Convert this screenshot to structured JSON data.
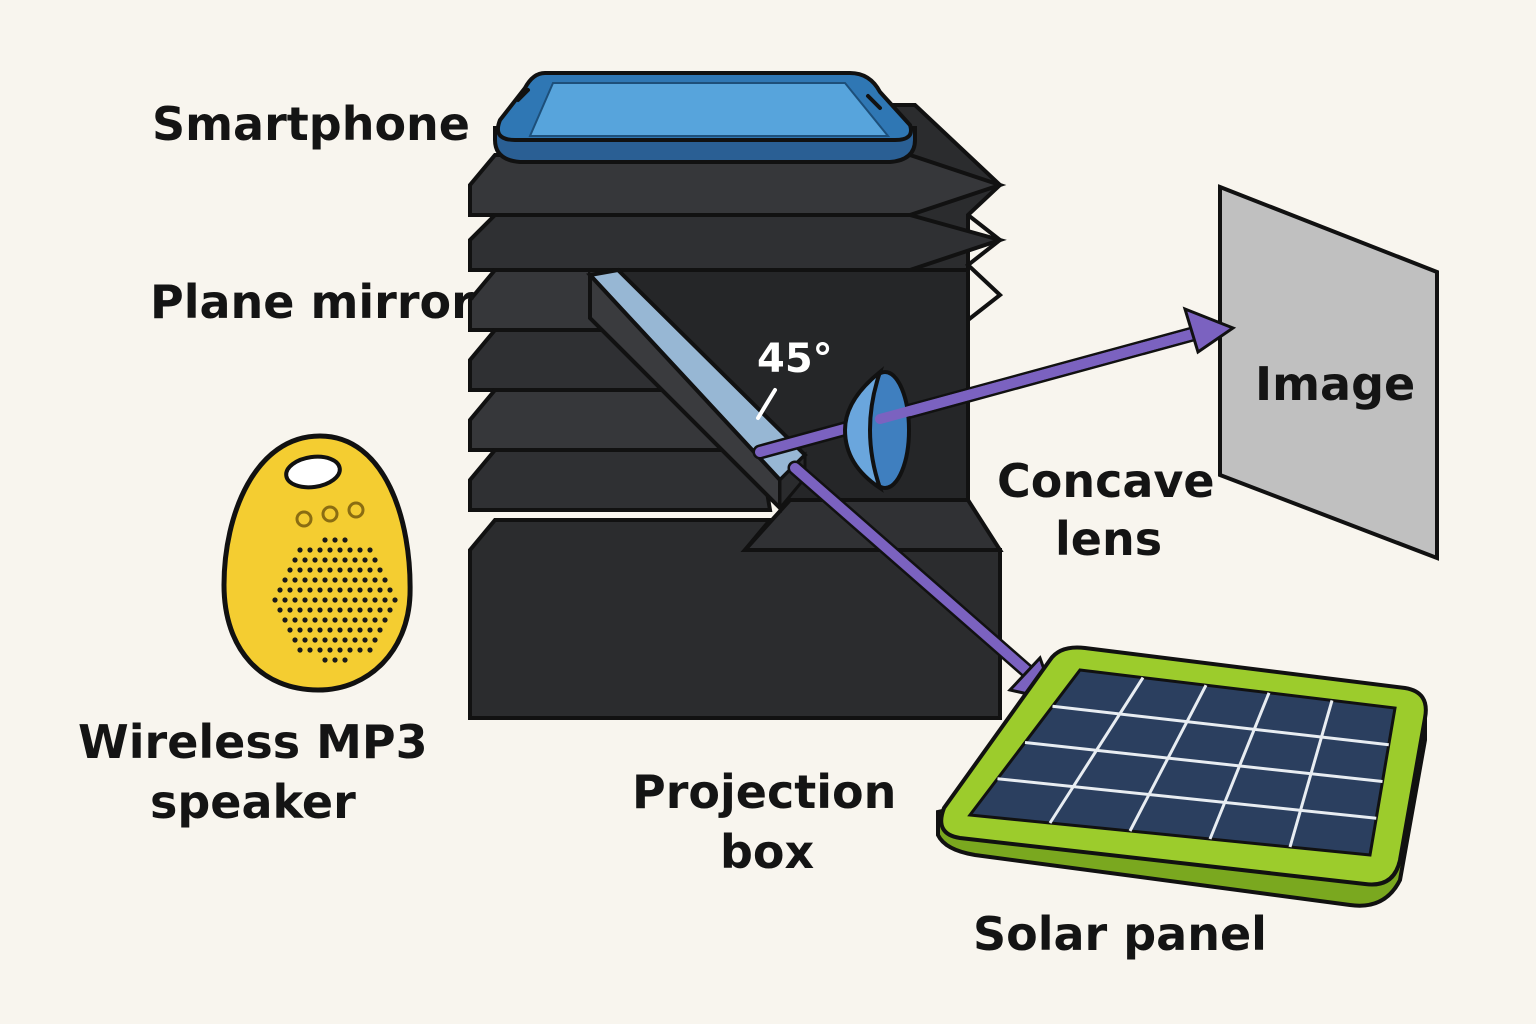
{
  "labels": {
    "smartphone": "Smartphone",
    "plane_mirror": "Plane mirror",
    "angle": "45°",
    "image": "Image",
    "concave_lens_line1": "Concave",
    "concave_lens_line2": "lens",
    "speaker_line1": "Wireless MP3",
    "speaker_line2": "speaker",
    "projection_box_line1": "Projection",
    "projection_box_line2": "box",
    "solar_panel": "Solar panel"
  },
  "colors": {
    "background": "#f8f5ee",
    "box_dark": "#2b2c2e",
    "box_fold": "#36373a",
    "outline": "#111111",
    "phone_blue": "#2f77b4",
    "phone_screen": "#57a4dc",
    "mirror": "#97b7d4",
    "lens": "#6aa6dd",
    "ray_purple": "#7b62c0",
    "screen_gray": "#c0c0c0",
    "speaker_yellow": "#f4cd31",
    "solar_frame": "#9ccc2c",
    "solar_cell": "#2b3f5f"
  },
  "icons": {
    "phone": "smartphone-icon",
    "speaker": "speaker-icon",
    "solar": "solar-panel-icon"
  }
}
